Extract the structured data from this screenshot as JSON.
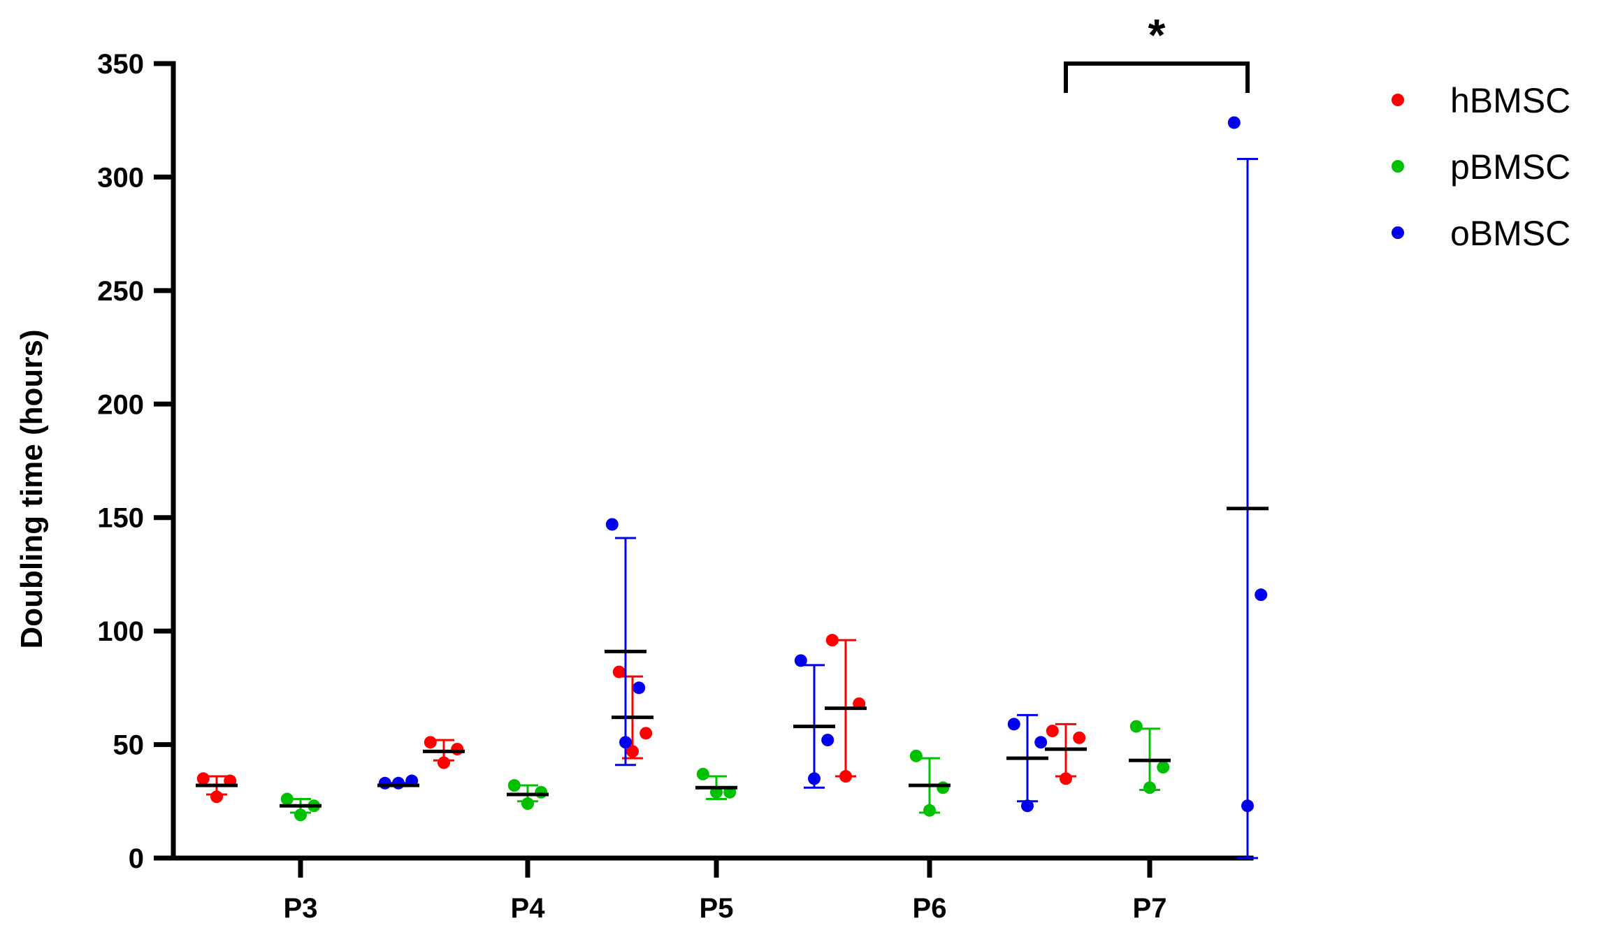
{
  "chart_data": {
    "type": "scatter",
    "title": "",
    "xlabel": "",
    "ylabel": "Doubling time (hours)",
    "ylim": [
      0,
      350
    ],
    "yticks": [
      0,
      50,
      100,
      150,
      200,
      250,
      300,
      350
    ],
    "categories": [
      "P3",
      "P4",
      "P5",
      "P6",
      "P7"
    ],
    "legend_position": "top-right",
    "grid": false,
    "series": [
      {
        "name": "hBMSC",
        "color": "#ff0000",
        "points": [
          [
            35,
            34,
            27
          ],
          [
            51,
            48,
            42
          ],
          [
            82,
            55,
            47
          ],
          [
            96,
            68,
            36
          ],
          [
            56,
            53,
            35
          ]
        ],
        "mean": [
          32,
          47,
          62,
          66,
          48
        ],
        "sd_low": [
          28,
          43,
          44,
          36,
          36
        ],
        "sd_high": [
          36,
          52,
          80,
          96,
          59
        ]
      },
      {
        "name": "pBMSC",
        "color": "#00c000",
        "points": [
          [
            26,
            23,
            19
          ],
          [
            32,
            29,
            24
          ],
          [
            37,
            29,
            29
          ],
          [
            45,
            31,
            21
          ],
          [
            58,
            40,
            31
          ]
        ],
        "mean": [
          23,
          28,
          31,
          32,
          43
        ],
        "sd_low": [
          20,
          25,
          26,
          20,
          30
        ],
        "sd_high": [
          26,
          32,
          36,
          44,
          57
        ]
      },
      {
        "name": "oBMSC",
        "color": "#0000ee",
        "points": [
          [
            33,
            34,
            33
          ],
          [
            147,
            75,
            51
          ],
          [
            87,
            52,
            35
          ],
          [
            59,
            51,
            23
          ],
          [
            324,
            116,
            23
          ]
        ],
        "mean": [
          32,
          91,
          58,
          44,
          154
        ],
        "sd_low": [
          32,
          41,
          31,
          25,
          0
        ],
        "sd_high": [
          33,
          141,
          85,
          63,
          308
        ]
      }
    ],
    "annotations": [
      {
        "text": "*",
        "between": [
          "hBMSC",
          "oBMSC"
        ],
        "category": "P7"
      }
    ]
  }
}
